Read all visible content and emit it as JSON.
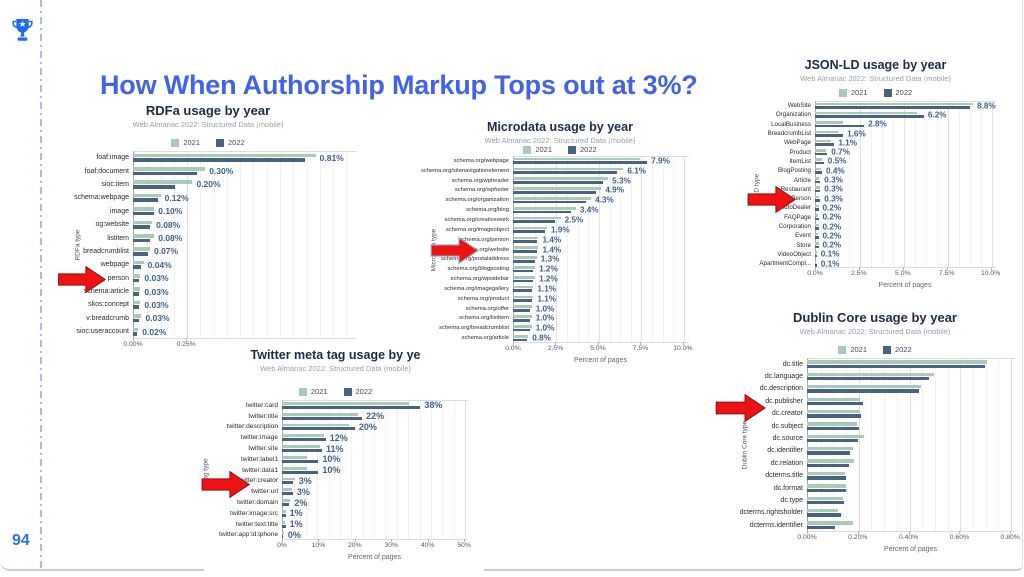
{
  "slide": {
    "title": "How When Authorship Markup Tops out at 3%?",
    "page_number": "94"
  },
  "colors": {
    "accent_blue": "#2f6df2",
    "title_blue": "#4263e7",
    "bar_2021": "#a9cab8",
    "bar_2022": "#4a6282",
    "value_label": "#41608e",
    "chart_title_navy": "#1b2b4d",
    "subtitle_gray": "#9aa0a6",
    "arrow_red": "#ee1313"
  },
  "chart_data": [
    {
      "id": "rdfa",
      "type": "bar",
      "orientation": "horizontal",
      "title": "RDFa usage by year",
      "subtitle": "Web Almanac 2022: Structured Data (mobile)",
      "legend": [
        "2021",
        "2022"
      ],
      "ylabel": "RDFa type",
      "xlabel": null,
      "xlim": [
        0,
        1.05
      ],
      "x_ticks": [
        "0.00%",
        "0.25%"
      ],
      "x_tick_values": [
        0,
        0.25
      ],
      "categories": [
        "foaf:image",
        "foaf:document",
        "sioc:item",
        "schema:webpage",
        "image",
        "og:website",
        "listitem",
        "breadcrumblist",
        "webpage",
        "person",
        "schema:article",
        "skos:concept",
        "v:breadcrumb",
        "sioc:useraccount"
      ],
      "series": [
        {
          "name": "2021",
          "values": [
            0.86,
            0.34,
            0.28,
            0.13,
            0.1,
            0.09,
            0.1,
            0.08,
            0.05,
            0.035,
            0.035,
            0.035,
            0.04,
            0.025
          ]
        },
        {
          "name": "2022",
          "values": [
            0.81,
            0.3,
            0.2,
            0.12,
            0.1,
            0.08,
            0.08,
            0.07,
            0.04,
            0.03,
            0.03,
            0.03,
            0.03,
            0.02
          ]
        }
      ],
      "bar_labels": [
        "0.81%",
        "0.30%",
        "0.20%",
        "0.12%",
        "0.10%",
        "0.08%",
        "0.08%",
        "0.07%",
        "0.04%",
        "0.03%",
        "0.03%",
        "0.03%",
        "0.03%",
        "0.02%"
      ]
    },
    {
      "id": "microdata",
      "type": "bar",
      "orientation": "horizontal",
      "title": "Microdata usage by year",
      "subtitle": "Web Almanac 2022: Structured Data (mobile)",
      "legend": [
        "2021",
        "2022"
      ],
      "ylabel": "Microdata type",
      "xlabel": "Percent of pages",
      "xlim": [
        0,
        10.3
      ],
      "x_ticks": [
        "0.0%",
        "2.5%",
        "5.0%",
        "7.5%",
        "10.0%"
      ],
      "x_tick_values": [
        0,
        2.5,
        5,
        7.5,
        10
      ],
      "categories": [
        "schema.org/webpage",
        "schema.org/sitenavigationelement",
        "schema.org/wpheader",
        "schema.org/wpfooter",
        "schema.org/organization",
        "schema.org/blog",
        "schema.org/creativework",
        "schema.org/imageobject",
        "schema.org/person",
        "schema.org/website",
        "schema.org/postaladdress",
        "schema.org/blogposting",
        "schema.org/wpsidebar",
        "schema.org/imagegallery",
        "schema.org/product",
        "schema.org/offer",
        "schema.org/listitem",
        "schema.org/breadcrumblist",
        "schema.org/article"
      ],
      "series": [
        {
          "name": "2021",
          "values": [
            7.5,
            6.5,
            5.6,
            5.2,
            4.6,
            3.7,
            2.8,
            2.0,
            1.5,
            1.5,
            1.4,
            1.3,
            1.3,
            1.2,
            1.2,
            1.1,
            1.1,
            1.1,
            0.9
          ]
        },
        {
          "name": "2022",
          "values": [
            7.9,
            6.1,
            5.3,
            4.9,
            4.3,
            3.4,
            2.5,
            1.9,
            1.4,
            1.4,
            1.3,
            1.2,
            1.2,
            1.1,
            1.1,
            1.0,
            1.0,
            1.0,
            0.8
          ]
        }
      ],
      "bar_labels": [
        "7.9%",
        "6.1%",
        "5.3%",
        "4.9%",
        "4.3%",
        "3.4%",
        "2.5%",
        "1.9%",
        "1.4%",
        "1.4%",
        "1.3%",
        "1.2%",
        "1.2%",
        "1.1%",
        "1.1%",
        "1.0%",
        "1.0%",
        "1.0%",
        "0.8%"
      ]
    },
    {
      "id": "jsonld",
      "type": "bar",
      "orientation": "horizontal",
      "title": "JSON-LD usage by year",
      "subtitle": "Web Almanac 2022: Structured Data (mobile)",
      "legend": [
        "2021",
        "2022"
      ],
      "ylabel": "LD type",
      "xlabel": "Percent of pages",
      "xlim": [
        0,
        10.25
      ],
      "x_ticks": [
        "0.0%",
        "2.5%",
        "5.0%",
        "7.5%",
        "10.0%"
      ],
      "x_tick_values": [
        0,
        2.5,
        5,
        7.5,
        10
      ],
      "categories": [
        "WebSite",
        "Organization",
        "LocalBusiness",
        "BreadcrumbList",
        "WebPage",
        "Product",
        "ItemList",
        "BlogPosting",
        "Article",
        "Restaurant",
        "Person",
        "AutoDealer",
        "FAQPage",
        "Corporation",
        "Event",
        "Store",
        "VideoObject",
        "ApartmentCompl..."
      ],
      "series": [
        {
          "name": "2021",
          "values": [
            9.0,
            5.8,
            1.6,
            1.3,
            0.9,
            0.6,
            0.4,
            0.35,
            0.25,
            0.27,
            0.25,
            0.2,
            0.15,
            0.2,
            0.15,
            0.2,
            0.1,
            0.05
          ]
        },
        {
          "name": "2022",
          "values": [
            8.8,
            6.2,
            2.8,
            1.6,
            1.1,
            0.7,
            0.5,
            0.4,
            0.3,
            0.3,
            0.3,
            0.2,
            0.2,
            0.2,
            0.2,
            0.2,
            0.1,
            0.1
          ]
        }
      ],
      "bar_labels": [
        "8.8%",
        "6.2%",
        "2.8%",
        "1.6%",
        "1.1%",
        "0.7%",
        "0.5%",
        "0.4%",
        "0.3%",
        "0.3%",
        "0.3%",
        "0.2%",
        "0.2%",
        "0.2%",
        "0.2%",
        "0.2%",
        "0.1%",
        "0.1%"
      ]
    },
    {
      "id": "twitter",
      "type": "bar",
      "orientation": "horizontal",
      "title": "Twitter meta tag usage by ye",
      "subtitle": "Web Almanac 2022: Structured Data (mobile)",
      "legend": [
        "2021",
        "2022"
      ],
      "ylabel": "tag type",
      "xlabel": "Percent of pages",
      "xlim": [
        0,
        50.8
      ],
      "x_ticks": [
        "0%",
        "10%",
        "20%",
        "30%",
        "40%",
        "50%"
      ],
      "x_tick_values": [
        0,
        10,
        20,
        30,
        40,
        50
      ],
      "categories": [
        "twitter:card",
        "twitter:title",
        "twitter:description",
        "twitter:image",
        "twitter:site",
        "twitter:label1",
        "twitter:data1",
        "twitter:creator",
        "twitter:url",
        "twitter:domain",
        "twitter:image:src",
        "twitter:text:title",
        "twitter:app:id:iphone"
      ],
      "series": [
        {
          "name": "2021",
          "values": [
            35,
            21,
            18.5,
            11.5,
            10.5,
            7,
            7,
            3.5,
            2.8,
            2.3,
            1.0,
            0.8,
            0.5
          ]
        },
        {
          "name": "2022",
          "values": [
            38,
            22,
            20,
            12,
            11,
            10,
            10,
            3,
            3,
            2,
            1,
            1,
            0.4
          ]
        }
      ],
      "bar_labels": [
        "38%",
        "22%",
        "20%",
        "12%",
        "11%",
        "10%",
        "10%",
        "3%",
        "3%",
        "2%",
        "1%",
        "1%",
        "0%"
      ]
    },
    {
      "id": "dublin",
      "type": "bar",
      "orientation": "horizontal",
      "title": "Dublin Core usage by year",
      "subtitle": "Web Almanac 2022: Structured Data (mobile)",
      "legend": [
        "2021",
        "2022"
      ],
      "ylabel": "Dublin Core type",
      "xlabel": "Percent of pages",
      "xlim": [
        0,
        0.815
      ],
      "x_ticks": [
        "0.00%",
        "0.20%",
        "0.40%",
        "0.60%",
        "0.80%"
      ],
      "x_tick_values": [
        0,
        0.2,
        0.4,
        0.6,
        0.8
      ],
      "categories": [
        "dc.title",
        "dc.language",
        "dc.description",
        "dc.publisher",
        "dc.creator",
        "dc.subject",
        "dc.source",
        "dc.identifier",
        "dc.relation",
        "dcterms.title",
        "dc.format",
        "dc.type",
        "dcterms.rightsholder",
        "dcterms.identifier"
      ],
      "series": [
        {
          "name": "2021",
          "values": [
            0.71,
            0.5,
            0.45,
            0.21,
            0.207,
            0.197,
            0.223,
            0.18,
            0.185,
            0.148,
            0.152,
            0.142,
            0.123,
            0.18
          ]
        },
        {
          "name": "2022",
          "values": [
            0.7,
            0.48,
            0.44,
            0.22,
            0.213,
            0.203,
            0.2,
            0.168,
            0.165,
            0.155,
            0.155,
            0.145,
            0.133,
            0.112
          ]
        }
      ],
      "bar_labels": null
    }
  ],
  "annotations": {
    "arrow_note": "red block arrows pointing at person/creator rows"
  }
}
